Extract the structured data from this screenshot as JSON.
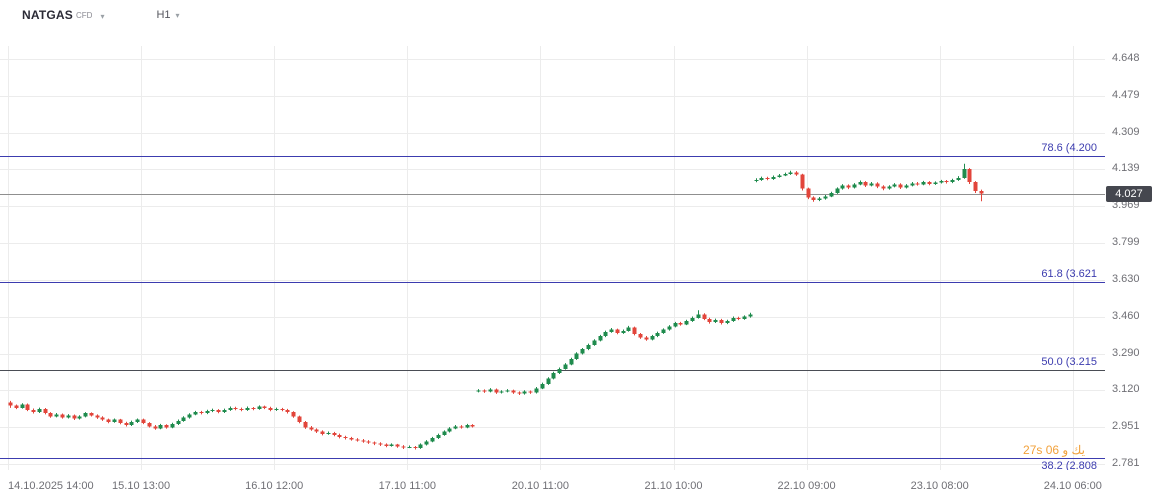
{
  "header": {
    "symbol": "NATGAS",
    "instrument_type": "CFD",
    "timeframe": "H1"
  },
  "price_axis": {
    "labels": [
      "4.648",
      "4.479",
      "4.309",
      "4.139",
      "3.969",
      "3.799",
      "3.630",
      "3.460",
      "3.290",
      "3.120",
      "2.951",
      "2.781"
    ],
    "current_price": "4.027"
  },
  "time_axis": {
    "labels": [
      "14.10.2025 14:00",
      "15.10 13:00",
      "16.10 12:00",
      "17.10 11:00",
      "20.10 11:00",
      "21.10 10:00",
      "22.10 09:00",
      "23.10 08:00",
      "24.10 06:00"
    ]
  },
  "fib_levels": [
    {
      "level": "78.6",
      "label": "78.6 (4.200",
      "price": 4.2,
      "line_color": "#3c3caf"
    },
    {
      "level": "61.8",
      "label": "61.8 (3.621",
      "price": 3.621,
      "line_color": "#3c3caf"
    },
    {
      "level": "50.0",
      "label": "50.0 (3.215",
      "price": 3.215,
      "line_color": "#4a4d55"
    },
    {
      "level": "38.2",
      "label": "38.2 (2.808",
      "price": 2.808,
      "line_color": "#3c3caf"
    }
  ],
  "watermark": "27s يك و 06",
  "colors": {
    "up": "#1f8b4d",
    "down": "#e2453b",
    "grid": "#ececec",
    "fib_label": "#3c3caf",
    "price_line": "#8f8f8f",
    "badge_bg": "#45474f",
    "axis_text": "#6f6f75",
    "watermark": "#f2a13a"
  },
  "chart_data": {
    "type": "candlestick",
    "title": "NATGAS CFD H1",
    "symbol": "NATGAS",
    "timeframe": "H1",
    "y_range": [
      2.781,
      4.648
    ],
    "x_start_label": "14.10.2025 14:00",
    "x_end_label": "24.10 06:00",
    "last_close": 4.027,
    "candles": [
      [
        3.065,
        3.072,
        3.04,
        3.05
      ],
      [
        3.05,
        3.055,
        3.034,
        3.04
      ],
      [
        3.04,
        3.061,
        3.036,
        3.055
      ],
      [
        3.055,
        3.06,
        3.025,
        3.03
      ],
      [
        3.03,
        3.037,
        3.014,
        3.02
      ],
      [
        3.02,
        3.041,
        3.016,
        3.035
      ],
      [
        3.035,
        3.039,
        3.01,
        3.015
      ],
      [
        3.015,
        3.02,
        2.994,
        3.0
      ],
      [
        3.0,
        3.016,
        2.996,
        3.01
      ],
      [
        3.01,
        3.014,
        2.99,
        2.995
      ],
      [
        2.995,
        3.011,
        2.991,
        3.005
      ],
      [
        3.005,
        3.009,
        2.984,
        2.99
      ],
      [
        2.99,
        3.006,
        2.986,
        3.0
      ],
      [
        3.0,
        3.02,
        2.996,
        3.015
      ],
      [
        3.015,
        3.019,
        3.0,
        3.005
      ],
      [
        3.005,
        3.01,
        2.989,
        2.995
      ],
      [
        2.995,
        3.001,
        2.98,
        2.985
      ],
      [
        2.985,
        2.99,
        2.969,
        2.975
      ],
      [
        2.975,
        2.991,
        2.971,
        2.985
      ],
      [
        2.985,
        2.989,
        2.964,
        2.97
      ],
      [
        2.97,
        2.976,
        2.954,
        2.96
      ],
      [
        2.96,
        2.981,
        2.956,
        2.975
      ],
      [
        2.975,
        2.991,
        2.97,
        2.985
      ],
      [
        2.985,
        2.99,
        2.965,
        2.97
      ],
      [
        2.97,
        2.974,
        2.949,
        2.955
      ],
      [
        2.955,
        2.961,
        2.939,
        2.945
      ],
      [
        2.945,
        2.966,
        2.941,
        2.96
      ],
      [
        2.96,
        2.964,
        2.944,
        2.95
      ],
      [
        2.95,
        2.971,
        2.946,
        2.965
      ],
      [
        2.965,
        2.986,
        2.961,
        2.98
      ],
      [
        2.98,
        3.001,
        2.976,
        2.995
      ],
      [
        2.995,
        3.015,
        2.99,
        3.01
      ],
      [
        3.01,
        3.026,
        3.006,
        3.02
      ],
      [
        3.02,
        3.026,
        3.01,
        3.015
      ],
      [
        3.015,
        3.031,
        3.011,
        3.025
      ],
      [
        3.025,
        3.036,
        3.02,
        3.03
      ],
      [
        3.03,
        3.034,
        3.015,
        3.02
      ],
      [
        3.02,
        3.036,
        3.016,
        3.03
      ],
      [
        3.03,
        3.046,
        3.026,
        3.04
      ],
      [
        3.04,
        3.045,
        3.029,
        3.035
      ],
      [
        3.035,
        3.041,
        3.024,
        3.03
      ],
      [
        3.03,
        3.046,
        3.026,
        3.04
      ],
      [
        3.04,
        3.044,
        3.029,
        3.035
      ],
      [
        3.035,
        3.051,
        3.031,
        3.045
      ],
      [
        3.045,
        3.05,
        3.034,
        3.04
      ],
      [
        3.04,
        3.045,
        3.024,
        3.03
      ],
      [
        3.03,
        3.041,
        3.026,
        3.035
      ],
      [
        3.035,
        3.04,
        3.024,
        3.03
      ],
      [
        3.03,
        3.035,
        3.014,
        3.02
      ],
      [
        3.02,
        3.024,
        2.994,
        3.0
      ],
      [
        3.0,
        3.004,
        2.969,
        2.975
      ],
      [
        2.975,
        2.979,
        2.943,
        2.95
      ],
      [
        2.95,
        2.956,
        2.934,
        2.94
      ],
      [
        2.94,
        2.945,
        2.924,
        2.93
      ],
      [
        2.93,
        2.936,
        2.913,
        2.92
      ],
      [
        2.92,
        2.931,
        2.916,
        2.925
      ],
      [
        2.925,
        2.929,
        2.909,
        2.915
      ],
      [
        2.915,
        2.921,
        2.899,
        2.905
      ],
      [
        2.905,
        2.911,
        2.894,
        2.9
      ],
      [
        2.9,
        2.906,
        2.889,
        2.895
      ],
      [
        2.895,
        2.9,
        2.884,
        2.89
      ],
      [
        2.89,
        2.896,
        2.879,
        2.885
      ],
      [
        2.885,
        2.891,
        2.874,
        2.88
      ],
      [
        2.88,
        2.885,
        2.868,
        2.875
      ],
      [
        2.875,
        2.881,
        2.864,
        2.87
      ],
      [
        2.87,
        2.876,
        2.858,
        2.865
      ],
      [
        2.865,
        2.876,
        2.861,
        2.87
      ],
      [
        2.87,
        2.874,
        2.856,
        2.862
      ],
      [
        2.862,
        2.868,
        2.85,
        2.858
      ],
      [
        2.858,
        2.866,
        2.854,
        2.86
      ],
      [
        2.86,
        2.864,
        2.848,
        2.855
      ],
      [
        2.855,
        2.876,
        2.851,
        2.87
      ],
      [
        2.87,
        2.891,
        2.866,
        2.885
      ],
      [
        2.885,
        2.906,
        2.881,
        2.9
      ],
      [
        2.9,
        2.921,
        2.896,
        2.915
      ],
      [
        2.915,
        2.936,
        2.911,
        2.93
      ],
      [
        2.93,
        2.951,
        2.926,
        2.945
      ],
      [
        2.945,
        2.961,
        2.941,
        2.955
      ],
      [
        2.955,
        2.96,
        2.944,
        2.95
      ],
      [
        2.95,
        2.966,
        2.946,
        2.96
      ],
      [
        2.96,
        2.965,
        2.949,
        2.955
      ],
      [
        3.115,
        3.126,
        3.111,
        3.12
      ],
      [
        3.12,
        3.125,
        3.109,
        3.115
      ],
      [
        3.115,
        3.131,
        3.111,
        3.125
      ],
      [
        3.125,
        3.129,
        3.104,
        3.11
      ],
      [
        3.11,
        3.121,
        3.106,
        3.115
      ],
      [
        3.115,
        3.126,
        3.111,
        3.12
      ],
      [
        3.12,
        3.124,
        3.104,
        3.11
      ],
      [
        3.11,
        3.116,
        3.099,
        3.105
      ],
      [
        3.105,
        3.121,
        3.101,
        3.115
      ],
      [
        3.115,
        3.12,
        3.104,
        3.11
      ],
      [
        3.11,
        3.136,
        3.106,
        3.13
      ],
      [
        3.13,
        3.156,
        3.126,
        3.15
      ],
      [
        3.15,
        3.181,
        3.146,
        3.175
      ],
      [
        3.175,
        3.206,
        3.171,
        3.2
      ],
      [
        3.2,
        3.226,
        3.196,
        3.22
      ],
      [
        3.22,
        3.246,
        3.216,
        3.24
      ],
      [
        3.24,
        3.271,
        3.236,
        3.265
      ],
      [
        3.265,
        3.296,
        3.261,
        3.29
      ],
      [
        3.29,
        3.316,
        3.286,
        3.31
      ],
      [
        3.31,
        3.336,
        3.306,
        3.33
      ],
      [
        3.33,
        3.356,
        3.326,
        3.35
      ],
      [
        3.35,
        3.376,
        3.346,
        3.37
      ],
      [
        3.37,
        3.396,
        3.366,
        3.39
      ],
      [
        3.39,
        3.408,
        3.386,
        3.4
      ],
      [
        3.4,
        3.405,
        3.379,
        3.385
      ],
      [
        3.385,
        3.401,
        3.381,
        3.395
      ],
      [
        3.395,
        3.418,
        3.391,
        3.41
      ],
      [
        3.41,
        3.414,
        3.374,
        3.38
      ],
      [
        3.38,
        3.385,
        3.358,
        3.365
      ],
      [
        3.365,
        3.371,
        3.349,
        3.355
      ],
      [
        3.355,
        3.376,
        3.351,
        3.37
      ],
      [
        3.37,
        3.391,
        3.366,
        3.385
      ],
      [
        3.385,
        3.406,
        3.381,
        3.4
      ],
      [
        3.4,
        3.421,
        3.396,
        3.415
      ],
      [
        3.415,
        3.436,
        3.411,
        3.43
      ],
      [
        3.43,
        3.436,
        3.419,
        3.425
      ],
      [
        3.425,
        3.446,
        3.421,
        3.44
      ],
      [
        3.44,
        3.461,
        3.436,
        3.455
      ],
      [
        3.455,
        3.49,
        3.451,
        3.47
      ],
      [
        3.47,
        3.476,
        3.444,
        3.45
      ],
      [
        3.45,
        3.455,
        3.428,
        3.435
      ],
      [
        3.435,
        3.451,
        3.431,
        3.445
      ],
      [
        3.445,
        3.45,
        3.424,
        3.43
      ],
      [
        3.43,
        3.446,
        3.426,
        3.44
      ],
      [
        3.44,
        3.461,
        3.436,
        3.455
      ],
      [
        3.455,
        3.46,
        3.444,
        3.45
      ],
      [
        3.45,
        3.466,
        3.446,
        3.46
      ],
      [
        3.46,
        3.478,
        3.456,
        3.47
      ],
      [
        4.085,
        4.098,
        4.08,
        4.09
      ],
      [
        4.09,
        4.106,
        4.086,
        4.1
      ],
      [
        4.1,
        4.105,
        4.089,
        4.095
      ],
      [
        4.095,
        4.111,
        4.091,
        4.105
      ],
      [
        4.105,
        4.118,
        4.101,
        4.112
      ],
      [
        4.112,
        4.124,
        4.108,
        4.118
      ],
      [
        4.118,
        4.133,
        4.114,
        4.125
      ],
      [
        4.125,
        4.131,
        4.109,
        4.115
      ],
      [
        4.115,
        4.119,
        4.042,
        4.05
      ],
      [
        4.05,
        4.055,
        4.002,
        4.01
      ],
      [
        4.01,
        4.015,
        3.99,
        3.998
      ],
      [
        3.998,
        4.012,
        3.993,
        4.005
      ],
      [
        4.005,
        4.021,
        4.0,
        4.015
      ],
      [
        4.015,
        4.036,
        4.011,
        4.03
      ],
      [
        4.03,
        4.056,
        4.026,
        4.05
      ],
      [
        4.05,
        4.071,
        4.046,
        4.065
      ],
      [
        4.065,
        4.07,
        4.048,
        4.055
      ],
      [
        4.055,
        4.076,
        4.051,
        4.07
      ],
      [
        4.07,
        4.088,
        4.066,
        4.08
      ],
      [
        4.08,
        4.085,
        4.058,
        4.065
      ],
      [
        4.065,
        4.081,
        4.061,
        4.075
      ],
      [
        4.075,
        4.08,
        4.053,
        4.06
      ],
      [
        4.06,
        4.066,
        4.043,
        4.05
      ],
      [
        4.05,
        4.066,
        4.046,
        4.06
      ],
      [
        4.06,
        4.076,
        4.056,
        4.07
      ],
      [
        4.07,
        4.075,
        4.049,
        4.055
      ],
      [
        4.055,
        4.071,
        4.051,
        4.065
      ],
      [
        4.065,
        4.081,
        4.061,
        4.075
      ],
      [
        4.075,
        4.081,
        4.064,
        4.07
      ],
      [
        4.07,
        4.086,
        4.066,
        4.08
      ],
      [
        4.08,
        4.085,
        4.066,
        4.072
      ],
      [
        4.072,
        4.084,
        4.068,
        4.078
      ],
      [
        4.078,
        4.091,
        4.074,
        4.085
      ],
      [
        4.085,
        4.09,
        4.074,
        4.08
      ],
      [
        4.08,
        4.096,
        4.076,
        4.09
      ],
      [
        4.09,
        4.108,
        4.086,
        4.1
      ],
      [
        4.1,
        4.165,
        4.096,
        4.14
      ],
      [
        4.14,
        4.145,
        4.072,
        4.08
      ],
      [
        4.08,
        4.085,
        4.03,
        4.04
      ],
      [
        4.04,
        4.046,
        3.992,
        4.027
      ]
    ]
  }
}
